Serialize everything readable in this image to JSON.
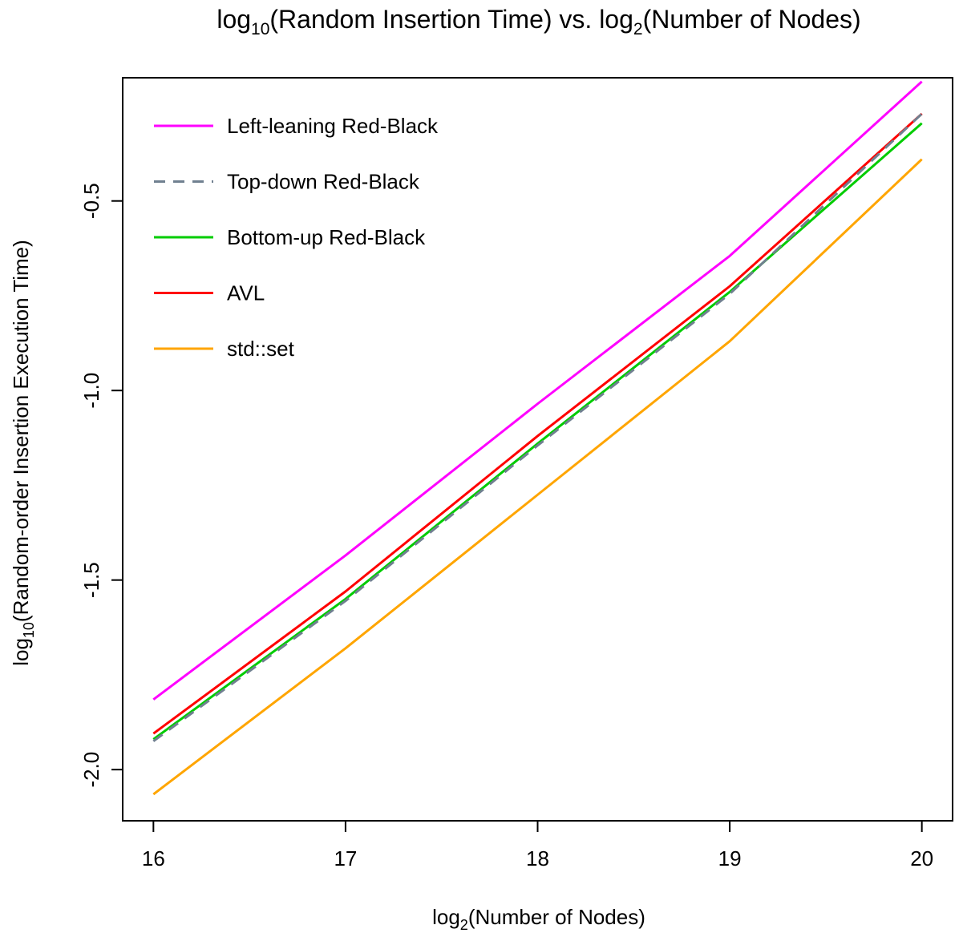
{
  "chart_data": {
    "type": "line",
    "title": {
      "prefix": "log",
      "sub1": "10",
      "middle": "(Random Insertion Time) vs. log",
      "sub2": "2",
      "suffix": "(Number of Nodes)"
    },
    "xlabel": {
      "prefix": "log",
      "sub": "2",
      "suffix": "(Number of Nodes)"
    },
    "ylabel": {
      "prefix": "log",
      "sub": "10",
      "suffix": "(Random-order Insertion Execution Time)"
    },
    "x": [
      16,
      17,
      18,
      19,
      20
    ],
    "xlim": [
      15.84,
      20.16
    ],
    "ylim": [
      -2.135,
      -0.175
    ],
    "x_ticks": [
      "16",
      "17",
      "18",
      "19",
      "20"
    ],
    "y_ticks": [
      "-2.0",
      "-1.5",
      "-1.0",
      "-0.5"
    ],
    "grid": false,
    "legend_position": "top-left",
    "series": [
      {
        "name": "Left-leaning Red-Black",
        "color": "#ff00ff",
        "dashed": false,
        "values": [
          -1.815,
          -1.435,
          -1.035,
          -0.645,
          -0.185
        ]
      },
      {
        "name": "Top-down Red-Black",
        "color": "#708090",
        "dashed": true,
        "values": [
          -1.925,
          -1.555,
          -1.145,
          -0.745,
          -0.27
        ]
      },
      {
        "name": "Bottom-up Red-Black",
        "color": "#00cc00",
        "dashed": false,
        "values": [
          -1.92,
          -1.55,
          -1.14,
          -0.74,
          -0.295
        ]
      },
      {
        "name": "AVL",
        "color": "#ff0000",
        "dashed": false,
        "values": [
          -1.905,
          -1.53,
          -1.12,
          -0.725,
          -0.27
        ]
      },
      {
        "name": "std::set",
        "color": "#ffa500",
        "dashed": false,
        "values": [
          -2.065,
          -1.68,
          -1.275,
          -0.87,
          -0.39
        ]
      }
    ]
  }
}
